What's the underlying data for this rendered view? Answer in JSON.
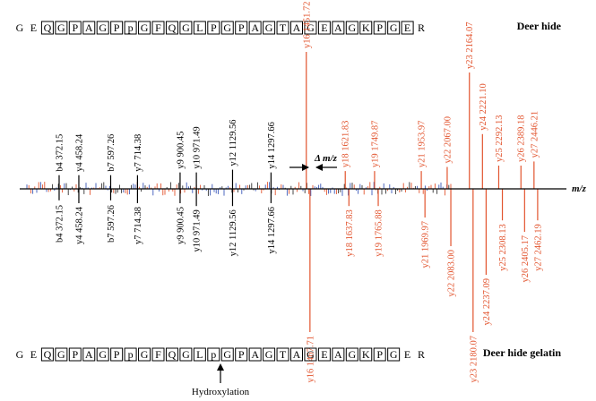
{
  "top_sequence": [
    "G",
    "E",
    "Q",
    "G",
    "P",
    "A",
    "G",
    "P",
    "p",
    "G",
    "F",
    "Q",
    "G",
    "L",
    "P",
    "G",
    "P",
    "A",
    "G",
    "T",
    "A",
    "G",
    "E",
    "A",
    "G",
    "K",
    "P",
    "G",
    "E",
    "R"
  ],
  "bottom_sequence": [
    "G",
    "E",
    "Q",
    "G",
    "P",
    "A",
    "G",
    "P",
    "p",
    "G",
    "F",
    "Q",
    "G",
    "L",
    "p",
    "G",
    "P",
    "A",
    "G",
    "T",
    "A",
    "G",
    "E",
    "A",
    "G",
    "K",
    "P",
    "G",
    "E",
    "R"
  ],
  "boxed_top": [
    2,
    3,
    4,
    5,
    6,
    7,
    8,
    9,
    10,
    11,
    12,
    13,
    14,
    15,
    16,
    17,
    18,
    19,
    20,
    21,
    22,
    23,
    24,
    25,
    26,
    27,
    28
  ],
  "boxed_bottom": [
    2,
    3,
    4,
    5,
    6,
    7,
    8,
    9,
    10,
    11,
    12,
    13,
    14,
    15,
    16,
    17,
    18,
    19,
    20,
    21,
    22,
    23,
    24,
    25,
    26,
    27
  ],
  "top_title": "Deer hide",
  "bottom_title": "Deer hide gelatin",
  "axis_label": "m/z",
  "delta_label": "Δ m/z",
  "hydroxylation_label": "Hydroxylation",
  "colors": {
    "black": "#000000",
    "red": "#e2542e",
    "blue": "#3b58b8"
  },
  "chart_data": {
    "type": "mirror-spectrum",
    "xlabel": "m/z",
    "xlim": [
      200,
      2580
    ],
    "ylim": [
      -100,
      100
    ],
    "top_series": "Deer hide",
    "bottom_series": "Deer hide gelatin",
    "top_peaks": [
      {
        "label": "b4 372.15",
        "mz": 372.15,
        "intensity": 10,
        "color": "black"
      },
      {
        "label": "y4 458.24",
        "mz": 458.24,
        "intensity": 10,
        "color": "black"
      },
      {
        "label": "b7 597.26",
        "mz": 597.26,
        "intensity": 10,
        "color": "black"
      },
      {
        "label": "y7 714.38",
        "mz": 714.38,
        "intensity": 10,
        "color": "black"
      },
      {
        "label": "y9 900.45",
        "mz": 900.45,
        "intensity": 12,
        "color": "black"
      },
      {
        "label": "y10 971.49",
        "mz": 971.49,
        "intensity": 12,
        "color": "black"
      },
      {
        "label": "y12 1129.56",
        "mz": 1129.56,
        "intensity": 14,
        "color": "black"
      },
      {
        "label": "y14 1297.66",
        "mz": 1297.66,
        "intensity": 12,
        "color": "black"
      },
      {
        "label": "y16 1451.72",
        "mz": 1451.72,
        "intensity": 100,
        "color": "red"
      },
      {
        "label": "y18 1621.83",
        "mz": 1621.83,
        "intensity": 13,
        "color": "red"
      },
      {
        "label": "y19 1749.87",
        "mz": 1749.87,
        "intensity": 13,
        "color": "red"
      },
      {
        "label": "y21 1953.97",
        "mz": 1953.97,
        "intensity": 13,
        "color": "red"
      },
      {
        "label": "y22 2067.00",
        "mz": 2067.0,
        "intensity": 16,
        "color": "red"
      },
      {
        "label": "y23 2164.07",
        "mz": 2164.07,
        "intensity": 85,
        "color": "red"
      },
      {
        "label": "y24 2221.10",
        "mz": 2221.1,
        "intensity": 40,
        "color": "red"
      },
      {
        "label": "y25 2292.13",
        "mz": 2292.13,
        "intensity": 17,
        "color": "red"
      },
      {
        "label": "y26 2389.18",
        "mz": 2389.18,
        "intensity": 17,
        "color": "red"
      },
      {
        "label": "y27 2446.21",
        "mz": 2446.21,
        "intensity": 20,
        "color": "red"
      }
    ],
    "bottom_peaks": [
      {
        "label": "b4 372.15",
        "mz": 372.15,
        "intensity": 8,
        "color": "black"
      },
      {
        "label": "y4 458.24",
        "mz": 458.24,
        "intensity": 10,
        "color": "black"
      },
      {
        "label": "b7 597.26",
        "mz": 597.26,
        "intensity": 8,
        "color": "black"
      },
      {
        "label": "y7 714.38",
        "mz": 714.38,
        "intensity": 10,
        "color": "black"
      },
      {
        "label": "y9 900.45",
        "mz": 900.45,
        "intensity": 10,
        "color": "black"
      },
      {
        "label": "y10 971.49",
        "mz": 971.49,
        "intensity": 12,
        "color": "black"
      },
      {
        "label": "y12 1129.56",
        "mz": 1129.56,
        "intensity": 12,
        "color": "black"
      },
      {
        "label": "y14 1297.66",
        "mz": 1297.66,
        "intensity": 10,
        "color": "black"
      },
      {
        "label": "y16 1467.71",
        "mz": 1467.71,
        "intensity": 100,
        "color": "red"
      },
      {
        "label": "y18 1637.83",
        "mz": 1637.83,
        "intensity": 12,
        "color": "red"
      },
      {
        "label": "y19 1765.88",
        "mz": 1765.88,
        "intensity": 12,
        "color": "red"
      },
      {
        "label": "y21 1969.97",
        "mz": 1969.97,
        "intensity": 20,
        "color": "red"
      },
      {
        "label": "y22 2083.00",
        "mz": 2083.0,
        "intensity": 40,
        "color": "red"
      },
      {
        "label": "y23 2180.07",
        "mz": 2180.07,
        "intensity": 100,
        "color": "red"
      },
      {
        "label": "y24 2237.09",
        "mz": 2237.09,
        "intensity": 60,
        "color": "red"
      },
      {
        "label": "y25 2308.13",
        "mz": 2308.13,
        "intensity": 22,
        "color": "red"
      },
      {
        "label": "y26 2405.17",
        "mz": 2405.17,
        "intensity": 30,
        "color": "red"
      },
      {
        "label": "y27 2462.19",
        "mz": 2462.19,
        "intensity": 22,
        "color": "red"
      }
    ]
  }
}
